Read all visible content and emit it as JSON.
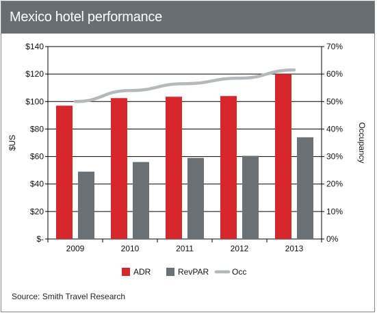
{
  "title": "Mexico hotel performance",
  "source": "Source: Smith Travel Research",
  "colors": {
    "title_bar": "#686f73",
    "adr": "#d6272d",
    "revpar": "#6a7176",
    "occ": "#b5b9bc",
    "frame": "#7f8589"
  },
  "chart_data": {
    "type": "bar",
    "categories": [
      "2009",
      "2010",
      "2011",
      "2012",
      "2013"
    ],
    "series": [
      {
        "name": "ADR",
        "kind": "bar",
        "axis": "left",
        "values": [
          97,
          102.5,
          103.5,
          104,
          120
        ]
      },
      {
        "name": "RevPAR",
        "kind": "bar",
        "axis": "left",
        "values": [
          49,
          56,
          59,
          60.5,
          74
        ]
      },
      {
        "name": "Occ",
        "kind": "line",
        "axis": "right",
        "values": [
          50,
          54,
          56.5,
          58.5,
          61.5
        ]
      }
    ],
    "ylabel": "$US",
    "y2label": "Occupancy",
    "ylim": [
      0,
      140
    ],
    "y2lim": [
      0,
      70
    ],
    "yticks": [
      "$-",
      "$20",
      "$40",
      "$60",
      "$80",
      "$100",
      "$120",
      "$140"
    ],
    "y2ticks": [
      "0%",
      "10%",
      "20%",
      "30%",
      "40%",
      "50%",
      "60%",
      "70%"
    ],
    "grid": true,
    "legend_position": "bottom"
  }
}
